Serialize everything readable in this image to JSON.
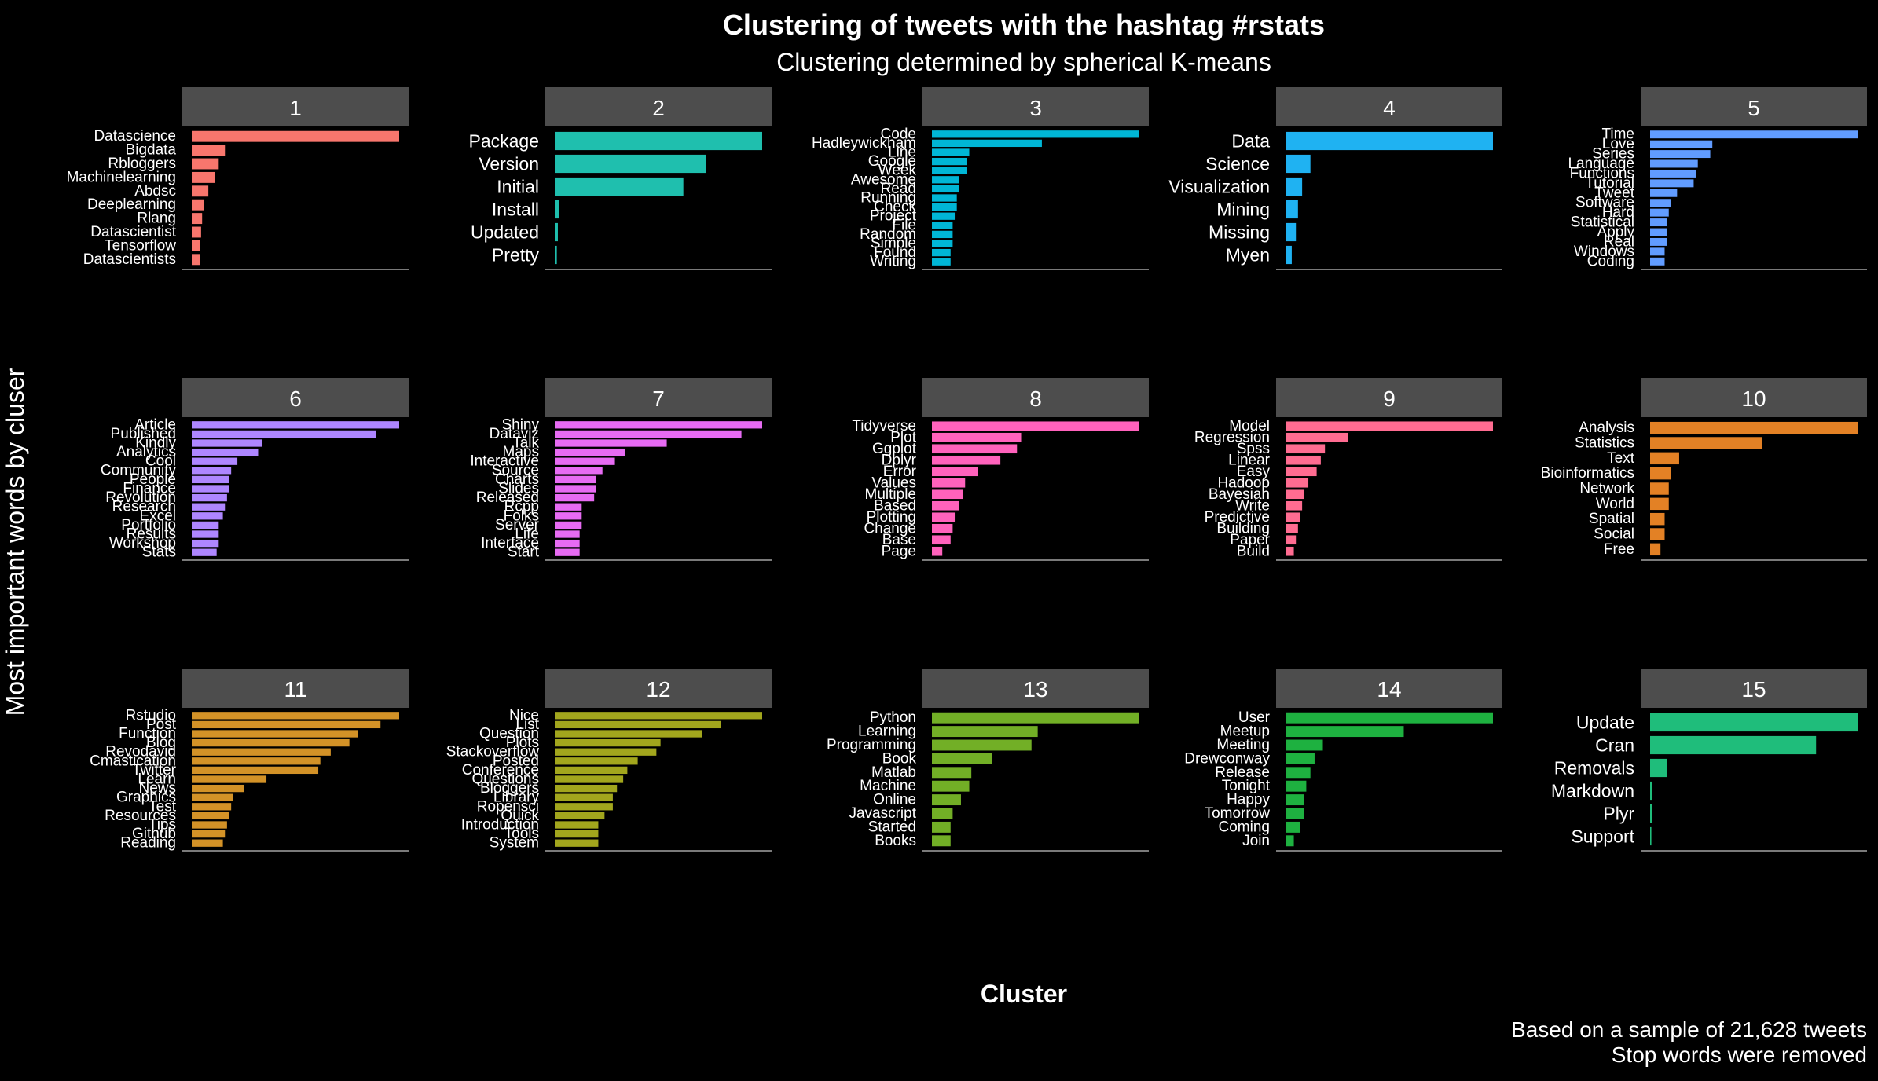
{
  "title": "Clustering of tweets with the hashtag #rstats",
  "subtitle": "Clustering determined by spherical K-means",
  "xlabel": "Cluster",
  "ylabel": "Most important words by cluser",
  "caption_line1": "Based on a sample of 21,628 tweets",
  "caption_line2": "Stop words were removed",
  "colors": {
    "background": "#000000",
    "strip": "#4d4d4d",
    "axis_line": "#7a7a7a"
  },
  "chart_data": {
    "type": "bar",
    "orientation": "horizontal",
    "faceted": true,
    "grid": false,
    "legend": "none",
    "panels": [
      {
        "label": "1",
        "color": "#F8766D",
        "words": [
          "Datascience",
          "Bigdata",
          "Rbloggers",
          "Machinelearning",
          "Abdsc",
          "Deeplearning",
          "Rlang",
          "Datascientist",
          "Tensorflow",
          "Datascientists"
        ],
        "values": [
          1.0,
          0.16,
          0.13,
          0.11,
          0.08,
          0.06,
          0.05,
          0.045,
          0.04,
          0.04
        ]
      },
      {
        "label": "2",
        "color": "#1FBFAE",
        "words": [
          "Package",
          "Version",
          "Initial",
          "Install",
          "Updated",
          "Pretty"
        ],
        "values": [
          1.0,
          0.73,
          0.62,
          0.02,
          0.015,
          0.01
        ]
      },
      {
        "label": "3",
        "color": "#00B6D6",
        "words": [
          "Code",
          "Hadleywickham",
          "Line",
          "Google",
          "Week",
          "Awesome",
          "Read",
          "Running",
          "Check",
          "Project",
          "File",
          "Random",
          "Simple",
          "Found",
          "Writing"
        ],
        "values": [
          1.0,
          0.53,
          0.18,
          0.17,
          0.17,
          0.13,
          0.13,
          0.12,
          0.12,
          0.11,
          0.1,
          0.1,
          0.1,
          0.09,
          0.09
        ]
      },
      {
        "label": "4",
        "color": "#1FB2F2",
        "words": [
          "Data",
          "Science",
          "Visualization",
          "Mining",
          "Missing",
          "Myen"
        ],
        "values": [
          1.0,
          0.12,
          0.08,
          0.06,
          0.05,
          0.03
        ]
      },
      {
        "label": "5",
        "color": "#619CFF",
        "words": [
          "Time",
          "Love",
          "Series",
          "Language",
          "Functions",
          "Tutorial",
          "Tweet",
          "Software",
          "Hard",
          "Statistical",
          "Apply",
          "Real",
          "Windows",
          "Coding"
        ],
        "values": [
          1.0,
          0.3,
          0.29,
          0.23,
          0.22,
          0.21,
          0.13,
          0.1,
          0.09,
          0.08,
          0.08,
          0.08,
          0.07,
          0.07
        ]
      },
      {
        "label": "6",
        "color": "#AE86FF",
        "words": [
          "Article",
          "Published",
          "Kindly",
          "Analytics",
          "Cool",
          "Community",
          "People",
          "Finance",
          "Revolution",
          "Research",
          "Excel",
          "Portfolio",
          "Results",
          "Workshop",
          "Stats"
        ],
        "values": [
          1.0,
          0.89,
          0.34,
          0.32,
          0.22,
          0.19,
          0.18,
          0.18,
          0.17,
          0.16,
          0.15,
          0.13,
          0.13,
          0.13,
          0.12
        ]
      },
      {
        "label": "7",
        "color": "#E76BF3",
        "words": [
          "Shiny",
          "Dataviz",
          "Talk",
          "Maps",
          "Interactive",
          "Source",
          "Charts",
          "Slides",
          "Released",
          "Rcpp",
          "Folks",
          "Server",
          "Life",
          "Interface",
          "Start"
        ],
        "values": [
          1.0,
          0.9,
          0.54,
          0.34,
          0.29,
          0.23,
          0.2,
          0.2,
          0.19,
          0.13,
          0.13,
          0.13,
          0.12,
          0.12,
          0.12
        ]
      },
      {
        "label": "8",
        "color": "#FF62BC",
        "words": [
          "Tidyverse",
          "Plot",
          "Ggplot",
          "Dplyr",
          "Error",
          "Values",
          "Multiple",
          "Based",
          "Plotting",
          "Change",
          "Base",
          "Page"
        ],
        "values": [
          1.0,
          0.43,
          0.41,
          0.33,
          0.22,
          0.16,
          0.15,
          0.13,
          0.11,
          0.1,
          0.09,
          0.05
        ]
      },
      {
        "label": "9",
        "color": "#FF6C91",
        "words": [
          "Model",
          "Regression",
          "Spss",
          "Linear",
          "Easy",
          "Hadoop",
          "Bayesian",
          "Write",
          "Predictive",
          "Building",
          "Paper",
          "Build"
        ],
        "values": [
          1.0,
          0.3,
          0.19,
          0.17,
          0.15,
          0.11,
          0.09,
          0.08,
          0.07,
          0.06,
          0.05,
          0.04
        ]
      },
      {
        "label": "10",
        "color": "#E38125",
        "words": [
          "Analysis",
          "Statistics",
          "Text",
          "Bioinformatics",
          "Network",
          "World",
          "Spatial",
          "Social",
          "Free"
        ],
        "values": [
          1.0,
          0.54,
          0.14,
          0.1,
          0.09,
          0.09,
          0.07,
          0.07,
          0.05
        ]
      },
      {
        "label": "11",
        "color": "#D39227",
        "words": [
          "Rstudio",
          "Post",
          "Function",
          "Blog",
          "Revodavid",
          "Cmastication",
          "Twitter",
          "Learn",
          "News",
          "Graphics",
          "Test",
          "Resources",
          "Tips",
          "Github",
          "Reading"
        ],
        "values": [
          1.0,
          0.91,
          0.8,
          0.76,
          0.67,
          0.62,
          0.61,
          0.36,
          0.25,
          0.2,
          0.19,
          0.18,
          0.17,
          0.16,
          0.15
        ]
      },
      {
        "label": "12",
        "color": "#A2A61D",
        "words": [
          "Nice",
          "List",
          "Question",
          "Plots",
          "Stackoverflow",
          "Posted",
          "Conference",
          "Questions",
          "Bloggers",
          "Library",
          "Ropensci",
          "Quick",
          "Introduction",
          "Tools",
          "System"
        ],
        "values": [
          1.0,
          0.8,
          0.71,
          0.51,
          0.49,
          0.4,
          0.35,
          0.33,
          0.3,
          0.28,
          0.28,
          0.24,
          0.21,
          0.21,
          0.21
        ]
      },
      {
        "label": "13",
        "color": "#72AF26",
        "words": [
          "Python",
          "Learning",
          "Programming",
          "Book",
          "Matlab",
          "Machine",
          "Online",
          "Javascript",
          "Started",
          "Books"
        ],
        "values": [
          1.0,
          0.51,
          0.48,
          0.29,
          0.19,
          0.18,
          0.14,
          0.1,
          0.09,
          0.09
        ]
      },
      {
        "label": "14",
        "color": "#1EB140",
        "words": [
          "User",
          "Meetup",
          "Meeting",
          "Drewconway",
          "Release",
          "Tonight",
          "Happy",
          "Tomorrow",
          "Coming",
          "Join"
        ],
        "values": [
          1.0,
          0.57,
          0.18,
          0.14,
          0.12,
          0.1,
          0.09,
          0.09,
          0.07,
          0.04
        ]
      },
      {
        "label": "15",
        "color": "#1FBD7B",
        "words": [
          "Update",
          "Cran",
          "Removals",
          "Markdown",
          "Plyr",
          "Support"
        ],
        "values": [
          1.0,
          0.8,
          0.08,
          0.01,
          0.008,
          0.006
        ]
      }
    ]
  }
}
